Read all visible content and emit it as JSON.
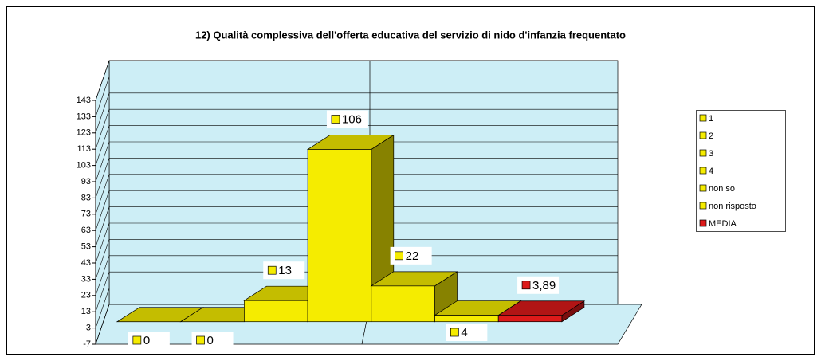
{
  "chart_data": {
    "type": "bar3d",
    "title": "12) Qualità complessiva dell'offerta educativa del servizio di nido d'infanzia frequentato",
    "categories": [
      "1",
      "2",
      "3",
      "4",
      "non so",
      "non risposto",
      "MEDIA"
    ],
    "values": [
      0,
      0,
      13,
      106,
      22,
      4,
      3.89
    ],
    "value_labels": [
      "0",
      "0",
      "13",
      "106",
      "22",
      "4",
      "3,89"
    ],
    "colors": [
      "#f5ec00",
      "#f5ec00",
      "#f5ec00",
      "#f5ec00",
      "#f5ec00",
      "#f5ec00",
      "#dd1a1a"
    ],
    "ylim": [
      -7,
      143
    ],
    "yticks": [
      -7,
      3,
      13,
      23,
      33,
      43,
      53,
      63,
      73,
      83,
      93,
      103,
      113,
      123,
      133,
      143
    ],
    "grid": true,
    "legend": "right"
  }
}
